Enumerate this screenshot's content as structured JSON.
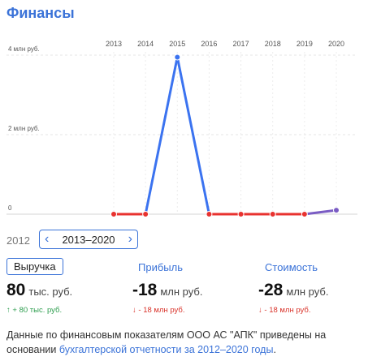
{
  "title": "Финансы",
  "chart_data": {
    "type": "line",
    "x": [
      "2013",
      "2014",
      "2015",
      "2016",
      "2017",
      "2018",
      "2019",
      "2020"
    ],
    "ytick_labels": [
      "4 млн руб.",
      "2 млн руб.",
      "0"
    ],
    "yticks": [
      4,
      2,
      0
    ],
    "ylim": [
      0,
      4
    ],
    "series": [
      {
        "values": [
          0,
          0,
          3.95,
          0,
          0,
          0,
          0,
          0.1
        ]
      }
    ],
    "colors": {
      "positive": "#3b73f0",
      "zero": "#e8322f",
      "last": "#7a5cc4"
    },
    "grid": true
  },
  "period": {
    "prev_year": "2012",
    "label": "2013–2020",
    "prev_arrow": "‹",
    "next_arrow": "›"
  },
  "tabs": [
    "Выручка",
    "Прибыль",
    "Стоимость"
  ],
  "metrics": [
    {
      "value": "80",
      "unit": "тыс. руб.",
      "change": "↑ + 80 тыс. руб.",
      "direction": "up"
    },
    {
      "value": "-18",
      "unit": "млн руб.",
      "change": "↓ - 18 млн руб.",
      "direction": "down"
    },
    {
      "value": "-28",
      "unit": "млн руб.",
      "change": "↓ - 18 млн руб.",
      "direction": "down"
    }
  ],
  "note": {
    "text": "Данные по финансовым показателям ООО АС \"АПК\" приведены на основании ",
    "link": "бухгалтерской отчетности за 2012–2020 годы",
    "end": "."
  }
}
